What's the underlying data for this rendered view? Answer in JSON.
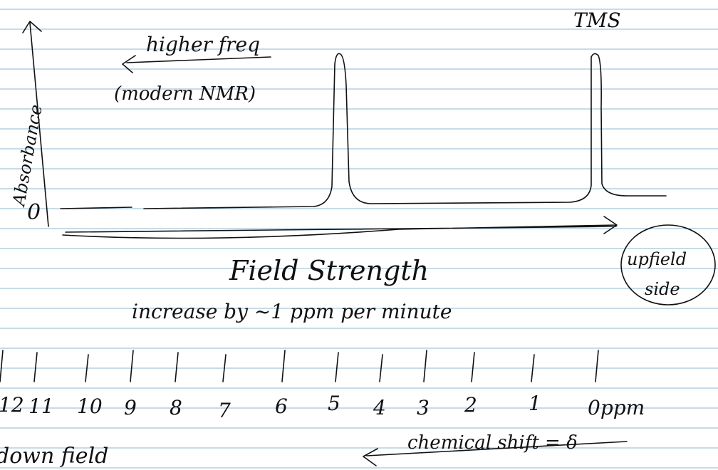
{
  "note": {
    "arrow_label": "higher freq",
    "arrow_sublabel": "(modern NMR)",
    "y_axis_label": "Absorbance",
    "origin_label": "0",
    "peak_label": "TMS",
    "x_axis_title": "Field Strength",
    "x_axis_subtitle": "increase by ~1 ppm per minute",
    "circle_note": [
      "upfield",
      "side"
    ],
    "scale_ticks": [
      "12",
      "11",
      "10",
      "9",
      "8",
      "7",
      "6",
      "5",
      "4",
      "3",
      "2",
      "1",
      "0ppm"
    ],
    "shift_label": "chemical shift = δ",
    "downfield_label": "down field"
  }
}
